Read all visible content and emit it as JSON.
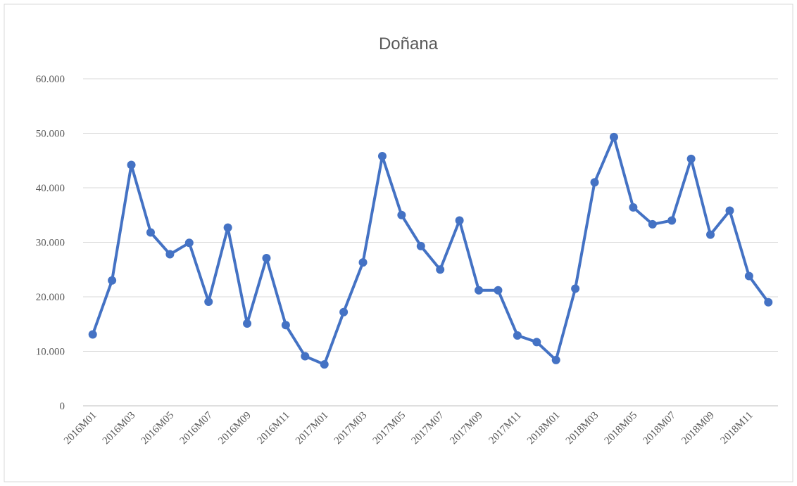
{
  "chart_data": {
    "type": "line",
    "title": "Doñana",
    "categories": [
      "2016M01",
      null,
      "2016M03",
      null,
      "2016M05",
      null,
      "2016M07",
      null,
      "2016M09",
      null,
      "2016M11",
      null,
      "2017M01",
      null,
      "2017M03",
      null,
      "2017M05",
      null,
      "2017M07",
      null,
      "2017M09",
      null,
      "2017M11",
      null,
      "2018M01",
      null,
      "2018M03",
      null,
      "2018M05",
      null,
      "2018M07",
      null,
      "2018M09",
      null,
      "2018M11",
      null
    ],
    "series": [
      {
        "color": "#4472c4",
        "values": [
          13100,
          23000,
          44200,
          31800,
          27800,
          29900,
          19100,
          32700,
          15100,
          27100,
          14800,
          9100,
          7600,
          17200,
          26300,
          45800,
          35000,
          29300,
          25000,
          34000,
          21200,
          21200,
          12900,
          11700,
          8400,
          21500,
          41000,
          49300,
          36400,
          33300,
          34000,
          45300,
          31400,
          35800,
          23800,
          19000
        ]
      }
    ],
    "ylim": [
      0,
      60000
    ],
    "yticks": [
      0,
      {
        "value": 10000,
        "label": "10.000"
      },
      {
        "value": 20000,
        "label": "20.000"
      },
      {
        "value": 30000,
        "label": "30.000"
      },
      {
        "value": 40000,
        "label": "40.000"
      },
      {
        "value": 50000,
        "label": "50.000"
      },
      {
        "value": 60000,
        "label": "60.000"
      }
    ],
    "grid": true
  }
}
